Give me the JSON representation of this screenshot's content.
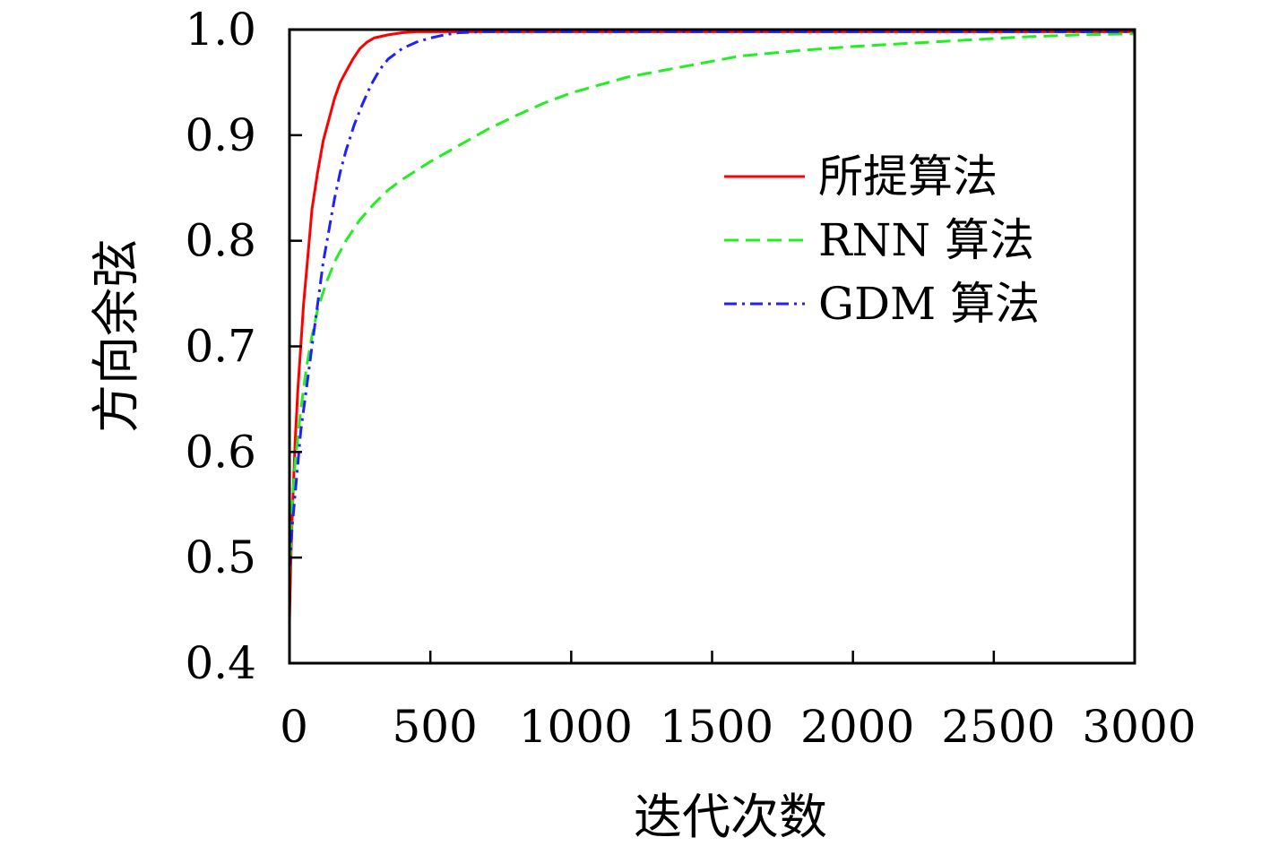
{
  "chart_data": {
    "type": "line",
    "xlabel": "迭代次数",
    "ylabel": "方向余弦",
    "xlim": [
      0,
      3000
    ],
    "ylim": [
      0.4,
      1.0
    ],
    "xticks": [
      "0",
      "500",
      "1000",
      "1500",
      "2000",
      "2500",
      "3000"
    ],
    "yticks": [
      "0.4",
      "0.5",
      "0.6",
      "0.7",
      "0.8",
      "0.9",
      "1.0"
    ],
    "grid": false,
    "legend_position": "center-right",
    "series": [
      {
        "name": "所提算法",
        "color": "#ff0000",
        "line_style": "solid",
        "x": [
          0,
          5,
          10,
          20,
          30,
          40,
          50,
          60,
          70,
          80,
          100,
          120,
          140,
          160,
          180,
          200,
          225,
          250,
          275,
          300,
          350,
          400,
          450,
          500,
          700,
          1000,
          1500,
          2000,
          2500,
          3000
        ],
        "y": [
          0.44,
          0.5,
          0.54,
          0.61,
          0.66,
          0.7,
          0.74,
          0.77,
          0.8,
          0.83,
          0.865,
          0.895,
          0.915,
          0.935,
          0.95,
          0.96,
          0.972,
          0.982,
          0.988,
          0.992,
          0.995,
          0.997,
          0.998,
          0.998,
          0.998,
          0.998,
          0.998,
          0.998,
          0.998,
          0.998
        ]
      },
      {
        "name": "RNN 算法",
        "color": "#22ee22",
        "line_style": "dashed",
        "x": [
          0,
          10,
          20,
          40,
          60,
          80,
          100,
          130,
          160,
          200,
          250,
          300,
          350,
          400,
          500,
          600,
          700,
          800,
          900,
          1000,
          1200,
          1400,
          1600,
          1800,
          2000,
          2200,
          2400,
          2600,
          2800,
          3000
        ],
        "y": [
          0.48,
          0.55,
          0.59,
          0.64,
          0.68,
          0.71,
          0.735,
          0.76,
          0.78,
          0.8,
          0.82,
          0.835,
          0.848,
          0.858,
          0.875,
          0.89,
          0.905,
          0.918,
          0.93,
          0.94,
          0.955,
          0.965,
          0.975,
          0.98,
          0.984,
          0.987,
          0.99,
          0.993,
          0.995,
          0.996
        ]
      },
      {
        "name": "GDM 算法",
        "color": "#1f1fff",
        "line_style": "dashdot",
        "x": [
          0,
          10,
          20,
          40,
          60,
          80,
          100,
          120,
          140,
          160,
          180,
          200,
          230,
          260,
          290,
          320,
          350,
          400,
          450,
          500,
          550,
          600,
          700,
          1000,
          1500,
          2000,
          2500,
          3000
        ],
        "y": [
          0.49,
          0.53,
          0.56,
          0.62,
          0.66,
          0.7,
          0.74,
          0.78,
          0.81,
          0.84,
          0.865,
          0.885,
          0.91,
          0.93,
          0.948,
          0.962,
          0.972,
          0.982,
          0.988,
          0.992,
          0.995,
          0.997,
          0.998,
          0.998,
          0.998,
          0.998,
          0.998,
          0.998
        ]
      }
    ]
  }
}
